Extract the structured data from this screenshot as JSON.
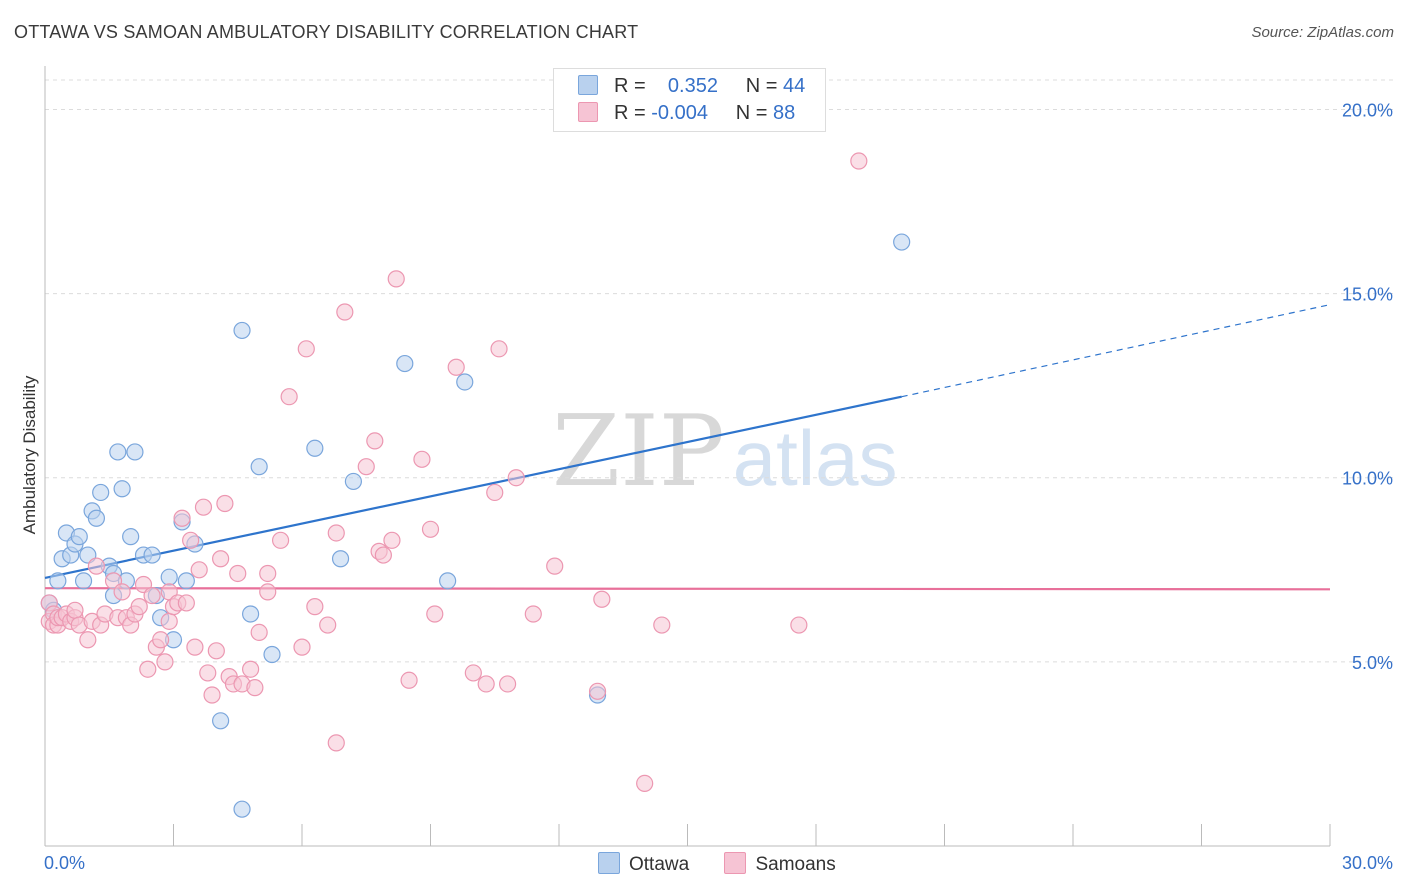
{
  "title": "OTTAWA VS SAMOAN AMBULATORY DISABILITY CORRELATION CHART",
  "source": "Source: ZipAtlas.com",
  "watermark": {
    "zip": "ZIP",
    "atlas": "atlas"
  },
  "legend": {
    "rows": [
      {
        "r_label": "R =",
        "r_value": "0.352",
        "n_label": "N =",
        "n_value": "44"
      },
      {
        "r_label": "R =",
        "r_value": "-0.004",
        "n_label": "N =",
        "n_value": "88"
      }
    ]
  },
  "colors": {
    "ottawa_fill": "#b9d1ee",
    "ottawa_stroke": "#7aa6dc",
    "ottawa_line": "#2e74cc",
    "samoan_fill": "#f6c4d4",
    "samoan_stroke": "#ec97b1",
    "samoan_line": "#e8709a",
    "tick_label": "#3570c8",
    "grid": "#dcdcdc"
  },
  "chart_data": {
    "type": "scatter",
    "title": "OTTAWA VS SAMOAN AMBULATORY DISABILITY CORRELATION CHART",
    "xlabel": "",
    "ylabel": "Ambulatory Disability",
    "xlim": [
      0,
      30
    ],
    "ylim": [
      0,
      20.8
    ],
    "x_tick_labels": [
      {
        "value": 0,
        "label": "0.0%"
      },
      {
        "value": 30,
        "label": "30.0%"
      }
    ],
    "y_tick_labels": [
      {
        "value": 5,
        "label": "5.0%"
      },
      {
        "value": 10,
        "label": "10.0%"
      },
      {
        "value": 15,
        "label": "15.0%"
      },
      {
        "value": 20,
        "label": "20.0%"
      }
    ],
    "x_minor_ticks": [
      0,
      3,
      6,
      9,
      12,
      15,
      18,
      21,
      24,
      27,
      30
    ],
    "grid": true,
    "legend_position": "top-center",
    "series": [
      {
        "name": "Ottawa",
        "color_key": "ottawa",
        "points": [
          [
            0.1,
            6.6
          ],
          [
            0.2,
            6.4
          ],
          [
            0.3,
            7.2
          ],
          [
            0.4,
            7.8
          ],
          [
            0.5,
            8.5
          ],
          [
            0.6,
            7.9
          ],
          [
            0.7,
            8.2
          ],
          [
            0.8,
            8.4
          ],
          [
            0.9,
            7.2
          ],
          [
            1.0,
            7.9
          ],
          [
            1.1,
            9.1
          ],
          [
            1.2,
            8.9
          ],
          [
            1.3,
            9.6
          ],
          [
            1.5,
            7.6
          ],
          [
            1.6,
            7.4
          ],
          [
            1.6,
            6.8
          ],
          [
            1.7,
            10.7
          ],
          [
            1.8,
            9.7
          ],
          [
            1.9,
            7.2
          ],
          [
            2.0,
            8.4
          ],
          [
            2.1,
            10.7
          ],
          [
            2.3,
            7.9
          ],
          [
            2.5,
            7.9
          ],
          [
            2.6,
            6.8
          ],
          [
            2.7,
            6.2
          ],
          [
            2.9,
            7.3
          ],
          [
            3.0,
            5.6
          ],
          [
            3.2,
            8.8
          ],
          [
            3.3,
            7.2
          ],
          [
            3.5,
            8.2
          ],
          [
            4.1,
            3.4
          ],
          [
            4.6,
            1.0
          ],
          [
            4.6,
            14.0
          ],
          [
            4.8,
            6.3
          ],
          [
            5.0,
            10.3
          ],
          [
            5.3,
            5.2
          ],
          [
            6.3,
            10.8
          ],
          [
            6.9,
            7.8
          ],
          [
            7.2,
            9.9
          ],
          [
            8.4,
            13.1
          ],
          [
            9.4,
            7.2
          ],
          [
            9.8,
            12.6
          ],
          [
            12.9,
            4.1
          ],
          [
            20.0,
            16.4
          ]
        ],
        "trend": {
          "x0": 0,
          "y0": 7.28,
          "x1": 20.0,
          "y1": 12.2,
          "dash_to_x": 30,
          "dash_to_y": 14.7
        }
      },
      {
        "name": "Samoans",
        "color_key": "samoan",
        "points": [
          [
            0.1,
            6.6
          ],
          [
            0.1,
            6.1
          ],
          [
            0.2,
            6.3
          ],
          [
            0.2,
            6.0
          ],
          [
            0.3,
            6.0
          ],
          [
            0.3,
            6.2
          ],
          [
            0.4,
            6.2
          ],
          [
            0.5,
            6.3
          ],
          [
            0.6,
            6.1
          ],
          [
            0.7,
            6.2
          ],
          [
            0.7,
            6.4
          ],
          [
            0.8,
            6.0
          ],
          [
            1.0,
            5.6
          ],
          [
            1.1,
            6.1
          ],
          [
            1.2,
            7.6
          ],
          [
            1.3,
            6.0
          ],
          [
            1.4,
            6.3
          ],
          [
            1.6,
            7.2
          ],
          [
            1.7,
            6.2
          ],
          [
            1.8,
            6.9
          ],
          [
            1.9,
            6.2
          ],
          [
            2.0,
            6.0
          ],
          [
            2.1,
            6.3
          ],
          [
            2.2,
            6.5
          ],
          [
            2.3,
            7.1
          ],
          [
            2.4,
            4.8
          ],
          [
            2.5,
            6.8
          ],
          [
            2.6,
            5.4
          ],
          [
            2.7,
            5.6
          ],
          [
            2.8,
            5.0
          ],
          [
            2.9,
            6.9
          ],
          [
            2.9,
            6.1
          ],
          [
            3.0,
            6.5
          ],
          [
            3.1,
            6.6
          ],
          [
            3.2,
            8.9
          ],
          [
            3.3,
            6.6
          ],
          [
            3.4,
            8.3
          ],
          [
            3.5,
            5.4
          ],
          [
            3.6,
            7.5
          ],
          [
            3.7,
            9.2
          ],
          [
            3.8,
            4.7
          ],
          [
            3.9,
            4.1
          ],
          [
            4.0,
            5.3
          ],
          [
            4.1,
            7.8
          ],
          [
            4.2,
            9.3
          ],
          [
            4.3,
            4.6
          ],
          [
            4.4,
            4.4
          ],
          [
            4.5,
            7.4
          ],
          [
            4.6,
            4.4
          ],
          [
            4.8,
            4.8
          ],
          [
            4.9,
            4.3
          ],
          [
            5.0,
            5.8
          ],
          [
            5.2,
            6.9
          ],
          [
            5.2,
            7.4
          ],
          [
            5.5,
            8.3
          ],
          [
            5.7,
            12.2
          ],
          [
            6.0,
            5.4
          ],
          [
            6.1,
            13.5
          ],
          [
            6.3,
            6.5
          ],
          [
            6.6,
            6.0
          ],
          [
            6.8,
            8.5
          ],
          [
            6.8,
            2.8
          ],
          [
            7.0,
            14.5
          ],
          [
            7.5,
            10.3
          ],
          [
            7.7,
            11.0
          ],
          [
            7.8,
            8.0
          ],
          [
            7.9,
            7.9
          ],
          [
            8.1,
            8.3
          ],
          [
            8.2,
            15.4
          ],
          [
            8.5,
            4.5
          ],
          [
            8.8,
            10.5
          ],
          [
            9.0,
            8.6
          ],
          [
            9.1,
            6.3
          ],
          [
            9.6,
            13.0
          ],
          [
            10.0,
            4.7
          ],
          [
            10.3,
            4.4
          ],
          [
            10.5,
            9.6
          ],
          [
            10.6,
            13.5
          ],
          [
            10.8,
            4.4
          ],
          [
            11.0,
            10.0
          ],
          [
            11.4,
            6.3
          ],
          [
            11.9,
            7.6
          ],
          [
            12.9,
            4.2
          ],
          [
            13.0,
            6.7
          ],
          [
            14.0,
            1.7
          ],
          [
            14.4,
            6.0
          ],
          [
            17.6,
            6.0
          ],
          [
            19.0,
            18.6
          ]
        ],
        "trend": {
          "x0": 0,
          "y0": 7.0,
          "x1": 30,
          "y1": 6.97
        }
      }
    ]
  },
  "bottom_legend": {
    "items": [
      "Ottawa",
      "Samoans"
    ]
  }
}
